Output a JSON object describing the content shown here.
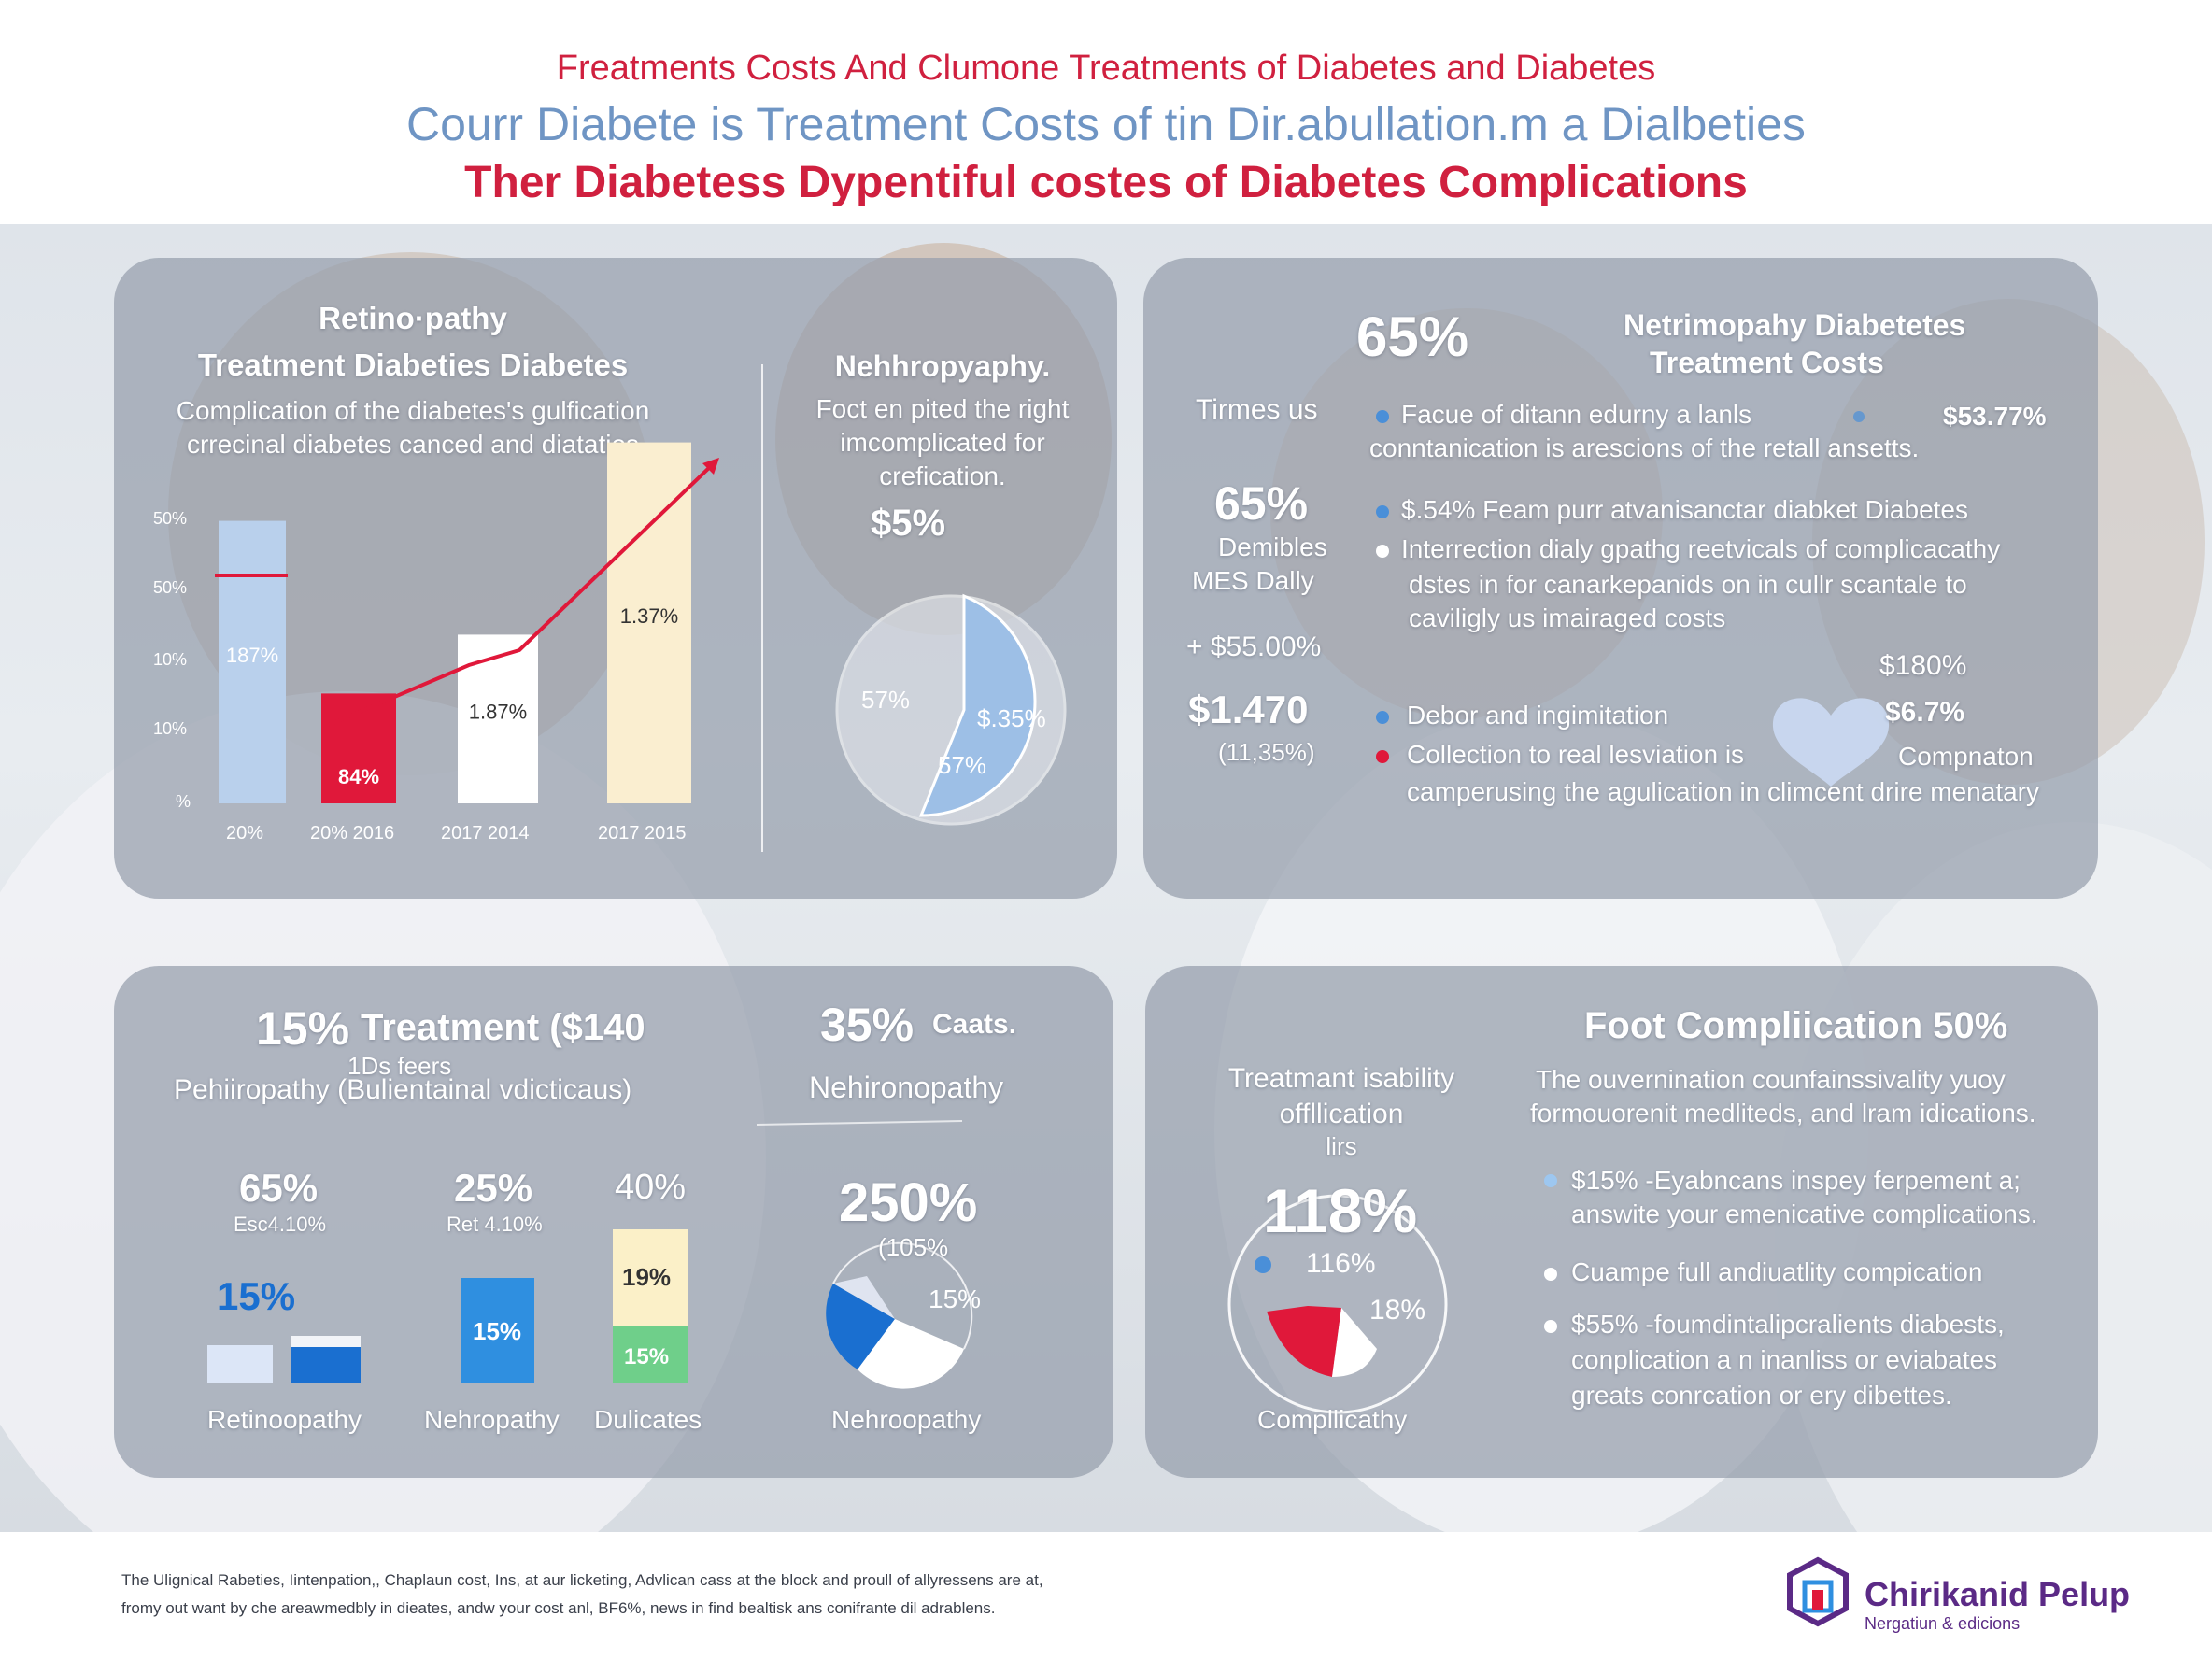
{
  "header": {
    "line1": "Freatments Costs And  Clumone Treatments of Diabetes and Diabetes",
    "line2": "Courr Diabete  is Treatment Costs of tin Dir.abullation.m a Dialbeties",
    "line3": "Ther Diabetess Dypentiful costes of Diabetes Complications"
  },
  "panel1": {
    "title_line1": "Retino·pathy",
    "title_line2": "Treatment Diabeties Diabetes",
    "sub_line1": "Complication of the diabetes's gulfication",
    "sub_line2": "crrecinal diabetes canced and diataties",
    "y_ticks": [
      "50%",
      "50%",
      "10%",
      "10%",
      "%"
    ],
    "x_labels": [
      "20%",
      "20% 2016",
      "2017  2014",
      "2017  2015"
    ],
    "bars": [
      {
        "label": "187%",
        "value": 0.72,
        "color": "#b9d0ec"
      },
      {
        "label": "84%",
        "value": 0.28,
        "color": "#e0183a"
      },
      {
        "label": "1.87%",
        "value": 0.43,
        "color": "#ffffff"
      },
      {
        "label": "1.37%",
        "value": 0.92,
        "color": "#faeed0"
      }
    ],
    "right_title": "Nehhropyaphy.",
    "right_sub_line1": "Foct en pited the right",
    "right_sub_line2": "imcomplicated for",
    "right_sub_line3": "crefication.",
    "right_value": "$5%",
    "pie_labels": [
      "57%",
      "$.35%",
      "57%"
    ]
  },
  "panel2": {
    "big_pct": "65%",
    "title_line1": "Netrimopahy Diabetetes",
    "title_line2": "Treatment  Costs",
    "left_items": [
      "Tirmes us",
      "65%",
      "Demibles",
      "MES Dally",
      "+ $55.00%",
      "$1.470",
      "(11,35%)"
    ],
    "bullet1_line1": "Facue of ditann edurny a lanls",
    "bullet1_value": "$53.77%",
    "bullet1_line2": "conntanication is arescions of the retall ansetts.",
    "bullet2": "$.54%  Feam purr atvanisanctar diabket Diabetes",
    "bullet3_line1": "Interrection dialy gpathg reetvicals of complicacathy",
    "bullet3_line2": "dstes in for canarkepanids on in cullr scantale to",
    "bullet3_line3": "caviligly us imairaged costs",
    "right_values": [
      "$180%",
      "$6.7%",
      "Compnaton"
    ],
    "bullet4": "Debor and ingimitation",
    "bullet5": "Collection to real lesviation is",
    "bullet5_line2": "camperusing the agulication in climcent drire menatary",
    "colors": {
      "blue": "#4a8fd8",
      "red": "#e0183a",
      "heart": "#c9d8f0"
    }
  },
  "panel3": {
    "head_pct": "15%",
    "head_text": "Treatment ($140",
    "head_sub": "1Ds feers",
    "head_line2": "Pehiiropathy (Bulientainal vdicticaus)",
    "groups": [
      {
        "pct": "65%",
        "sub": "Esc4.10%",
        "bar_label": "15%",
        "name": "Retinoopathy"
      },
      {
        "pct": "25%",
        "sub": "Ret 4.10%",
        "bar_label": "15%",
        "name": "Nehropathy"
      },
      {
        "pct": "40%",
        "sub": "",
        "bar_label": "19%",
        "bar_label2": "15%",
        "name": "Dulicates"
      }
    ],
    "right_pct": "35%",
    "right_pct_text": "Caats.",
    "right_title": "Nehironopathy",
    "right_big": "250%",
    "right_sub": "(105%",
    "right_slice": "15%",
    "right_caption": "Nehroopathy"
  },
  "panel4": {
    "title": "Foot Compliication 50%",
    "left_line1": "Treatmant isability",
    "left_line2": "offllication",
    "left_line3": "lirs",
    "big_pct": "118%",
    "pie_label1": "116%",
    "pie_label2": "18%",
    "pie_caption": "Compllicathy",
    "desc_line1": "The ouvernination counfainssivality yuoy",
    "desc_line2": "formouorenit medliteds, and lram idications.",
    "b1_line1": "$15% -Eyabncans inspey ferpement a;",
    "b1_line2": "answite your emenicative complications.",
    "b2": "Cuampe full andiuatlity compication",
    "b3_line1": "$55% -foumdintalipcralients diabests,",
    "b3_line2": "conplication a n inanliss or eviabates",
    "b3_line3": "greats conrcation or ery dibettes."
  },
  "footer": {
    "note_line1": "The Ulignical Rabeties,  Iintenpation,, Chaplaun cost,  Ins,  at aur licketing, Advlican cass at the block and proull of allyressens are at,",
    "note_line2": "fromy out want by che areawmedbly in dieates, andw your cost anl, BF6%, news in find bealtisk ans conifrante dil adrablens.",
    "brand_name": "Chirikanid Pelup",
    "brand_sub": "Nergatiun & edicions",
    "brand_color": "#5b2a86"
  }
}
